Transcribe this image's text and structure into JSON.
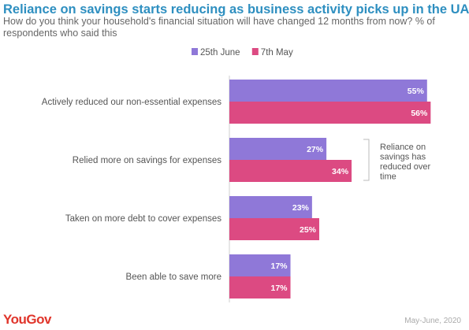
{
  "title": "Reliance on savings starts reducing as business activity picks up in the UAE",
  "subtitle": "How do you think your household's financial situation will have changed 12 months from now? % of respondents who said this",
  "footer": {
    "brand": "YouGov",
    "date": "May-June, 2020"
  },
  "colors": {
    "series1": "#8f78d8",
    "series2": "#dc4a82",
    "title": "#2e8fc0"
  },
  "chart_data": {
    "type": "bar",
    "orientation": "horizontal",
    "categories": [
      "Actively reduced our non-essential expenses",
      "Relied more on savings for expenses",
      "Taken on more debt to cover expenses",
      "Been able to save more"
    ],
    "series": [
      {
        "name": "25th June",
        "values": [
          55,
          27,
          23,
          17
        ]
      },
      {
        "name": "7th May",
        "values": [
          56,
          34,
          25,
          17
        ]
      }
    ],
    "value_suffix": "%",
    "legend": "top-center",
    "grid": false,
    "annotation": {
      "text": "Reliance on savings has reduced over time",
      "category": "Relied more on savings for expenses"
    }
  }
}
